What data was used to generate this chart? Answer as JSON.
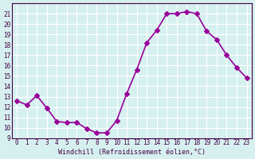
{
  "hours": [
    0,
    1,
    2,
    3,
    4,
    5,
    6,
    7,
    8,
    9,
    10,
    11,
    12,
    13,
    14,
    15,
    16,
    17,
    18,
    19,
    20,
    21,
    22,
    23
  ],
  "windchill": [
    12.6,
    12.2,
    13.1,
    11.9,
    10.6,
    10.5,
    10.5,
    9.9,
    9.5,
    9.5,
    10.7,
    13.3,
    15.6,
    18.2,
    19.4,
    21.0,
    21.0,
    21.2,
    21.0,
    19.3,
    18.5,
    17.0,
    15.8,
    14.8
  ],
  "line_color": "#990099",
  "marker": "D",
  "markersize": 3,
  "linewidth": 1.2,
  "bg_color": "#d6f0f0",
  "grid_color": "#ffffff",
  "xlabel": "Windchill (Refroidissement éolien,°C)",
  "ylim": [
    9,
    22
  ],
  "xlim": [
    -0.5,
    23.5
  ],
  "yticks": [
    9,
    10,
    11,
    12,
    13,
    14,
    15,
    16,
    17,
    18,
    19,
    20,
    21
  ],
  "xticks": [
    0,
    1,
    2,
    3,
    4,
    5,
    6,
    7,
    8,
    9,
    10,
    11,
    12,
    13,
    14,
    15,
    16,
    17,
    18,
    19,
    20,
    21,
    22,
    23
  ],
  "tick_color": "#440044",
  "spine_color": "#440044"
}
